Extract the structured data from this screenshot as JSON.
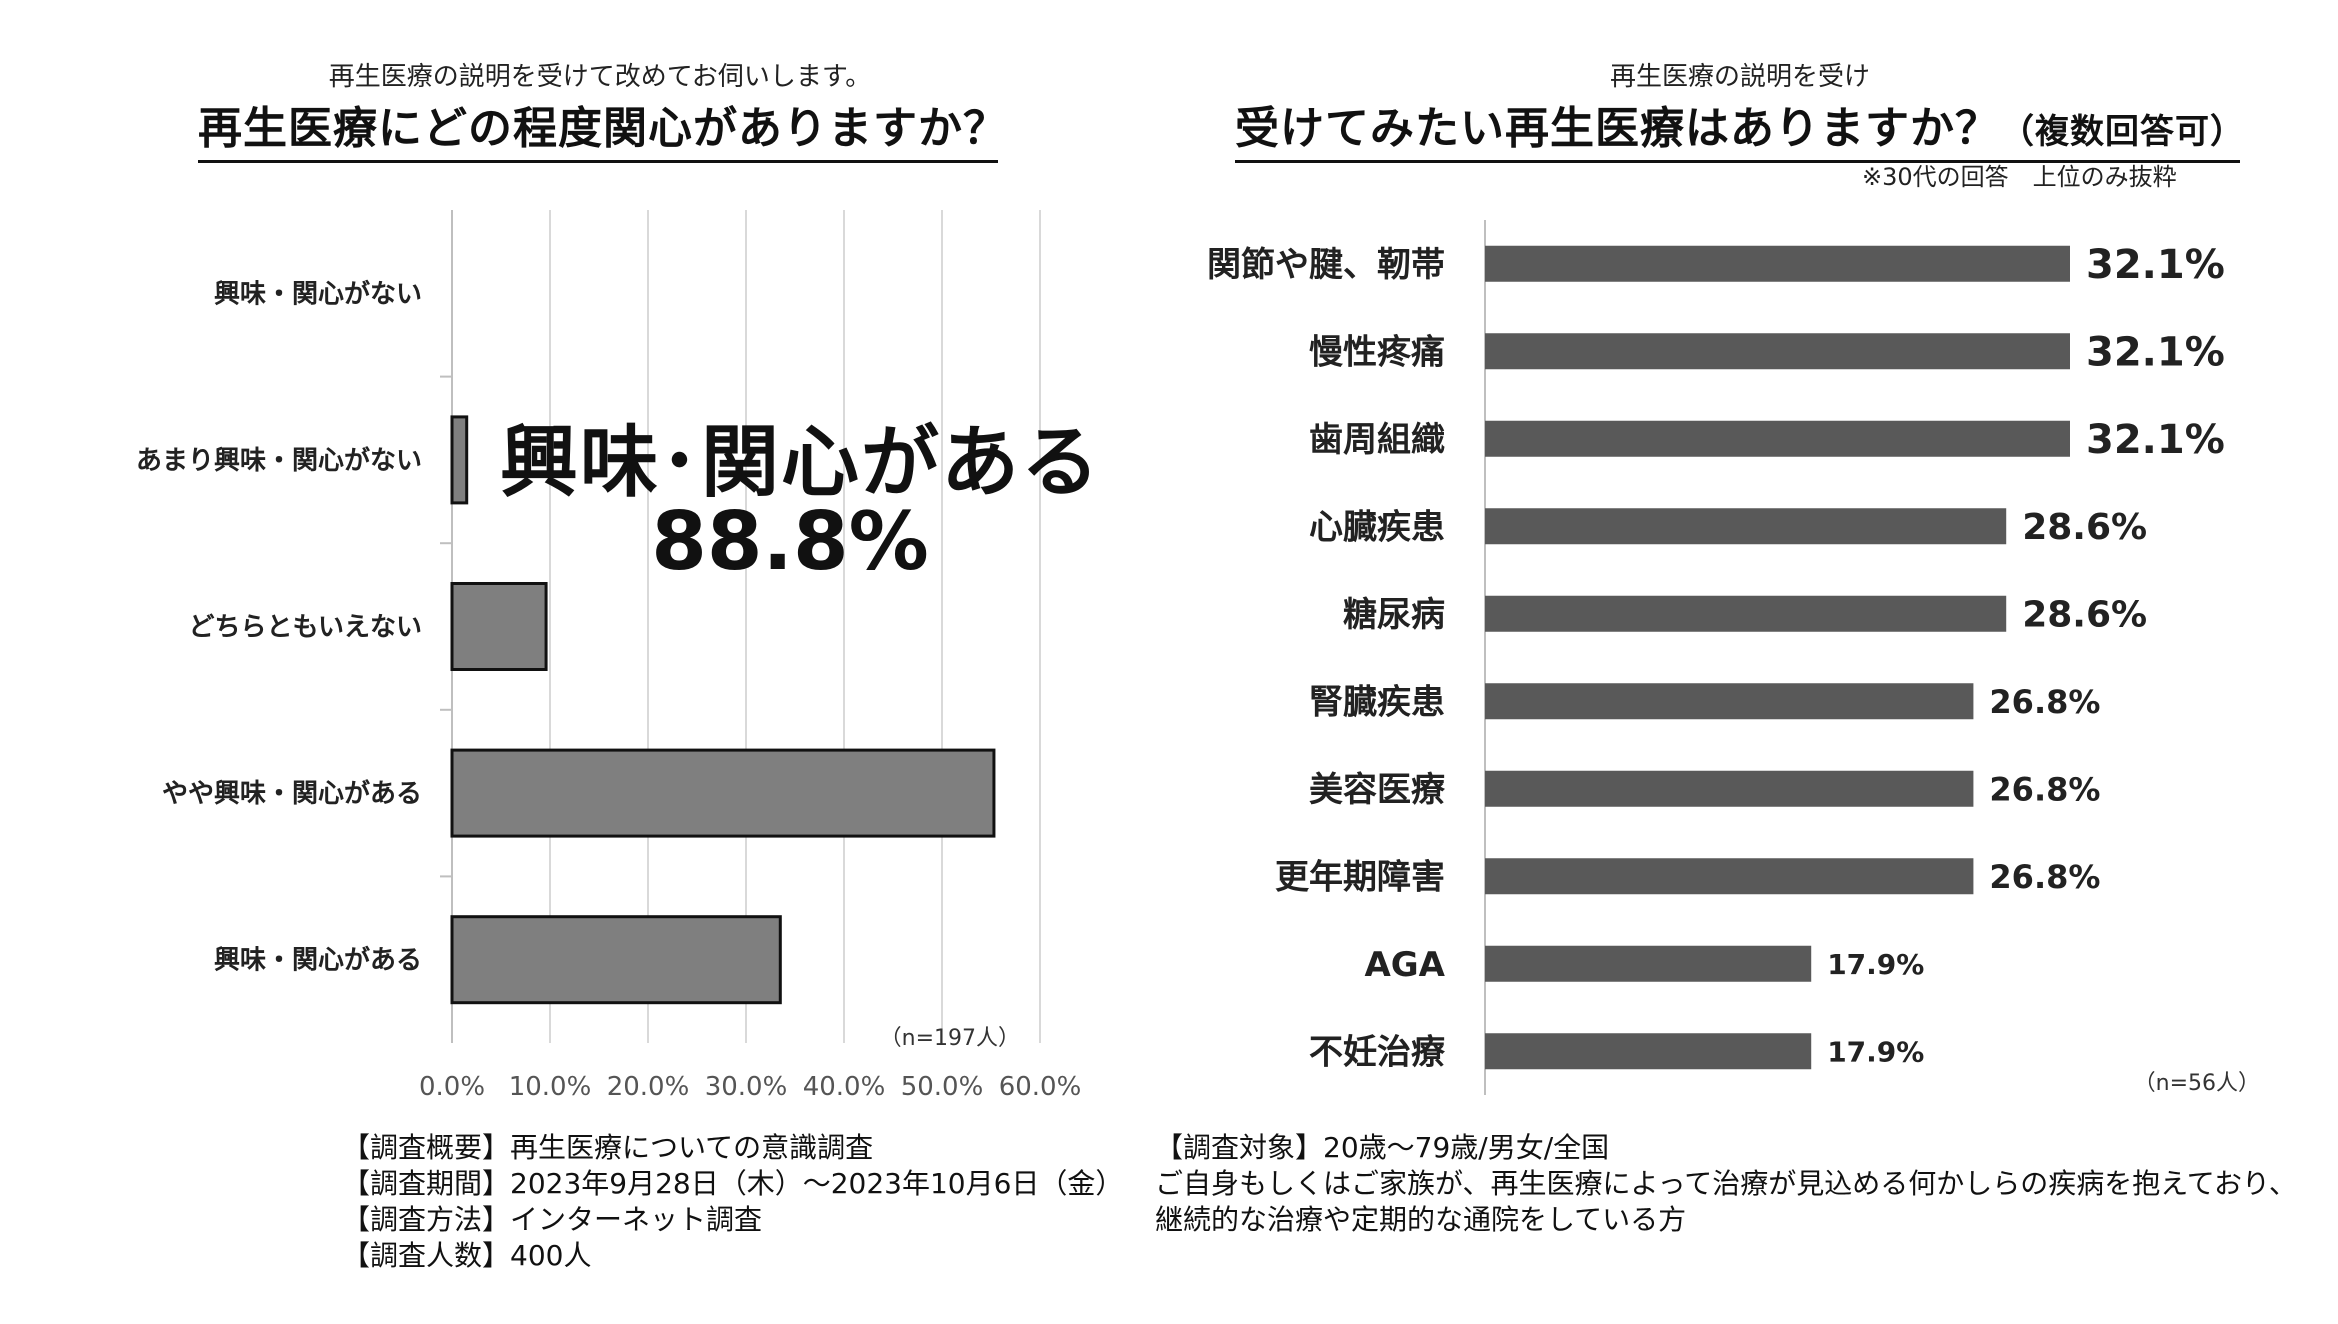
{
  "left_chart": {
    "subtitle": "再生医療の説明を受けて改めてお伺いします。",
    "title": "再生医療にどの程度関心がありますか？",
    "callout_label": "興味･関心がある",
    "callout_value": "88.8%",
    "n_label": "（n=197人）"
  },
  "right_chart": {
    "subtitle": "再生医療の説明を受け",
    "title": "受けてみたい再生医療はありますか？",
    "title_suffix": "（複数回答可）",
    "note": "※30代の回答　上位のみ抜粋",
    "n_label": "（n=56人）"
  },
  "chart_data": [
    {
      "type": "bar",
      "orientation": "horizontal",
      "categories": [
        "興味・関心がない",
        "あまり興味・関心がない",
        "どちらともいえない",
        "やや興味・関心がある",
        "興味・関心がある"
      ],
      "values": [
        0.0,
        1.5,
        9.6,
        55.3,
        33.5
      ],
      "xlim": [
        0,
        60
      ],
      "x_ticks": [
        "0.0%",
        "10.0%",
        "20.0%",
        "30.0%",
        "40.0%",
        "50.0%",
        "60.0%"
      ],
      "grid": true,
      "colors": {
        "bar": "#7f7f7f",
        "edge": "#111111",
        "grid": "#d9d9d9"
      }
    },
    {
      "type": "bar",
      "orientation": "horizontal",
      "categories": [
        "関節や腱、靭帯",
        "慢性疼痛",
        "歯周組織",
        "心臓疾患",
        "糖尿病",
        "腎臓疾患",
        "美容医療",
        "更年期障害",
        "AGA",
        "不妊治療"
      ],
      "values": [
        32.1,
        32.1,
        32.1,
        28.6,
        28.6,
        26.8,
        26.8,
        26.8,
        17.9,
        17.9
      ],
      "value_labels": [
        "32.1%",
        "32.1%",
        "32.1%",
        "28.6%",
        "28.6%",
        "26.8%",
        "26.8%",
        "26.8%",
        "17.9%",
        "17.9%"
      ],
      "grid": false,
      "colors": {
        "bar": "#595959"
      }
    }
  ],
  "footer_left": {
    "line1": "【調査概要】再生医療についての意識調査",
    "line2": "【調査期間】2023年9月28日（木）～2023年10月6日（金）",
    "line3": "【調査方法】インターネット調査",
    "line4": "【調査人数】400人"
  },
  "footer_right": {
    "line1": "【調査対象】20歳～79歳/男女/全国",
    "line2": "ご自身もしくはご家族が、再生医療によって治療が見込める何かしらの疾病を抱えており、",
    "line3": "継続的な治療や定期的な通院をしている方"
  }
}
